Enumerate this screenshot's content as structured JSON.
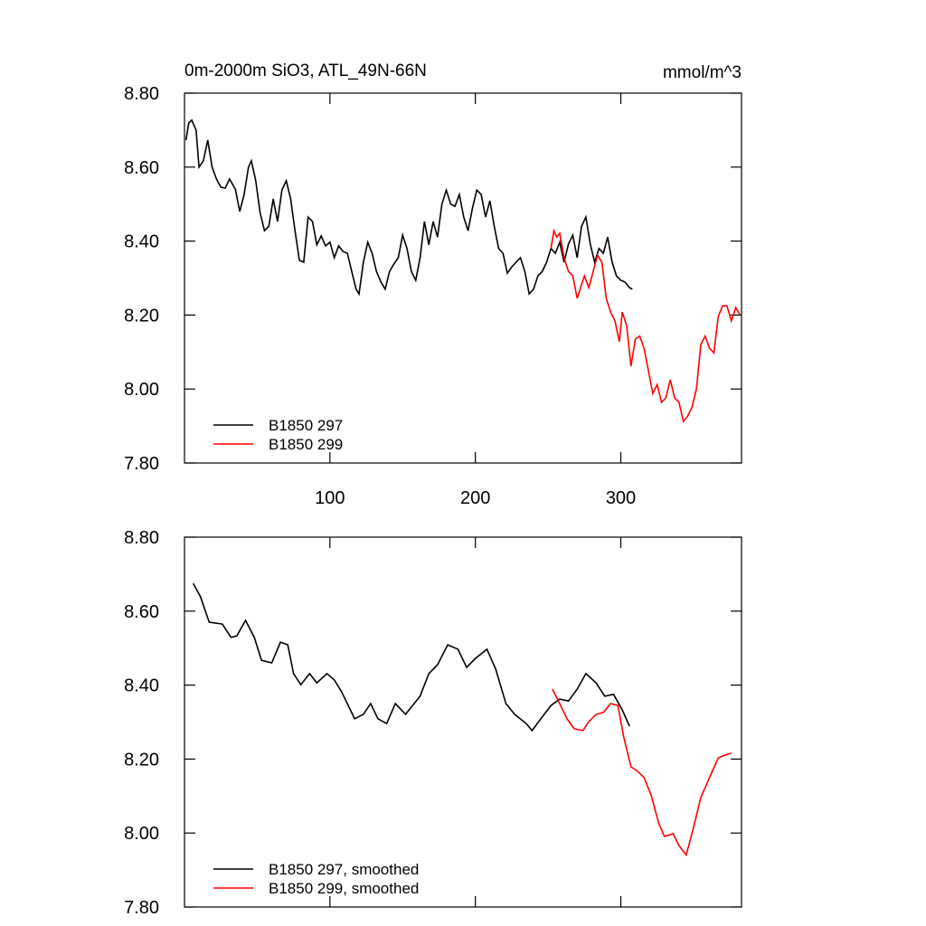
{
  "chart_data": [
    {
      "type": "line",
      "title": "0m-2000m SiO3, ATL_49N-66N",
      "units": "mmol/m^3",
      "xlim": [
        0,
        383
      ],
      "xticks": [
        100,
        200,
        300
      ],
      "xtick_labels": true,
      "ylim": [
        7.8,
        8.8
      ],
      "yticks": [
        {
          "value": 7.8,
          "label": "7.80"
        },
        {
          "value": 8.0,
          "label": "8.00"
        },
        {
          "value": 8.2,
          "label": "8.20"
        },
        {
          "value": 8.4,
          "label": "8.40"
        },
        {
          "value": 8.6,
          "label": "8.60"
        },
        {
          "value": 8.8,
          "label": "8.80"
        }
      ],
      "legend": "lower left",
      "series": [
        {
          "name": "B1850 297",
          "color": "#000000",
          "x": [
            1,
            3,
            5,
            8,
            10,
            13,
            16,
            19,
            22,
            25,
            28,
            31,
            35,
            38,
            41,
            44,
            46,
            49,
            52,
            55,
            58,
            61,
            64,
            67,
            70,
            73,
            76,
            79,
            82,
            85,
            88,
            91,
            94,
            97,
            100,
            103,
            106,
            109,
            112,
            115,
            118,
            120,
            123,
            126,
            129,
            132,
            135,
            138,
            141,
            144,
            147,
            150,
            153,
            156,
            159,
            162,
            165,
            168,
            171,
            174,
            177,
            180,
            183,
            186,
            189,
            192,
            195,
            198,
            201,
            204,
            207,
            210,
            213,
            216,
            219,
            222,
            225,
            228,
            231,
            234,
            237,
            240,
            243,
            246,
            249,
            252,
            255,
            258,
            261,
            264,
            267,
            270,
            273,
            276,
            279,
            282,
            285,
            288,
            291,
            294,
            297,
            300,
            303,
            306,
            308
          ],
          "values": [
            8.673,
            8.72,
            8.727,
            8.7,
            8.6,
            8.617,
            8.673,
            8.6,
            8.568,
            8.546,
            8.543,
            8.568,
            8.54,
            8.48,
            8.526,
            8.6,
            8.617,
            8.563,
            8.477,
            8.428,
            8.44,
            8.514,
            8.453,
            8.538,
            8.563,
            8.514,
            8.428,
            8.348,
            8.343,
            8.465,
            8.453,
            8.39,
            8.414,
            8.387,
            8.397,
            8.355,
            8.387,
            8.372,
            8.367,
            8.318,
            8.27,
            8.257,
            8.343,
            8.397,
            8.367,
            8.318,
            8.29,
            8.27,
            8.318,
            8.338,
            8.355,
            8.416,
            8.38,
            8.318,
            8.294,
            8.355,
            8.453,
            8.39,
            8.453,
            8.411,
            8.5,
            8.538,
            8.5,
            8.494,
            8.526,
            8.465,
            8.428,
            8.489,
            8.538,
            8.526,
            8.465,
            8.509,
            8.44,
            8.38,
            8.367,
            8.313,
            8.33,
            8.343,
            8.355,
            8.318,
            8.257,
            8.27,
            8.306,
            8.318,
            8.343,
            8.38,
            8.367,
            8.397,
            8.343,
            8.392,
            8.416,
            8.355,
            8.44,
            8.465,
            8.392,
            8.343,
            8.38,
            8.367,
            8.411,
            8.343,
            8.306,
            8.294,
            8.289,
            8.274,
            8.27
          ]
        },
        {
          "name": "B1850 299",
          "color": "#ff0000",
          "x": [
            252,
            254,
            256,
            258,
            261,
            264,
            267,
            270,
            273,
            275,
            278,
            281,
            284,
            287,
            290,
            293,
            296,
            299,
            301,
            304,
            307,
            310,
            313,
            316,
            319,
            322,
            325,
            328,
            331,
            334,
            337,
            340,
            343,
            346,
            349,
            352,
            355,
            358,
            361,
            364,
            367,
            370,
            373,
            376,
            379,
            382
          ],
          "values": [
            8.38,
            8.428,
            8.411,
            8.421,
            8.355,
            8.318,
            8.306,
            8.245,
            8.282,
            8.306,
            8.274,
            8.318,
            8.362,
            8.343,
            8.245,
            8.208,
            8.184,
            8.128,
            8.208,
            8.172,
            8.062,
            8.135,
            8.143,
            8.11,
            8.049,
            7.988,
            8.012,
            7.964,
            7.976,
            8.025,
            7.976,
            7.964,
            7.912,
            7.927,
            7.951,
            8.0,
            8.12,
            8.143,
            8.11,
            8.098,
            8.196,
            8.225,
            8.225,
            8.184,
            8.22,
            8.2
          ]
        }
      ]
    },
    {
      "type": "line",
      "xlim": [
        0,
        383
      ],
      "xticks": [
        100,
        200,
        300
      ],
      "xtick_labels": false,
      "ylim": [
        7.8,
        8.8
      ],
      "yticks": [
        {
          "value": 7.8,
          "label": "7.80"
        },
        {
          "value": 8.0,
          "label": "8.00"
        },
        {
          "value": 8.2,
          "label": "8.20"
        },
        {
          "value": 8.4,
          "label": "8.40"
        },
        {
          "value": 8.6,
          "label": "8.60"
        },
        {
          "value": 8.8,
          "label": "8.80"
        }
      ],
      "legend": "lower left",
      "series": [
        {
          "name": "B1850 297, smoothed",
          "color": "#000000",
          "x": [
            6,
            11,
            17,
            26,
            32,
            36,
            42,
            48,
            53,
            60,
            66,
            71,
            75,
            80,
            86,
            91,
            98,
            103,
            108,
            117,
            123,
            128,
            133,
            139,
            145,
            152,
            162,
            168,
            174,
            181,
            188,
            194,
            200,
            208,
            214,
            221,
            227,
            235,
            239,
            245,
            252,
            258,
            264,
            270,
            276,
            283,
            289,
            295,
            301,
            306
          ],
          "values": [
            8.675,
            8.639,
            8.57,
            8.565,
            8.529,
            8.533,
            8.575,
            8.529,
            8.467,
            8.46,
            8.516,
            8.509,
            8.431,
            8.401,
            8.431,
            8.406,
            8.431,
            8.414,
            8.382,
            8.309,
            8.321,
            8.35,
            8.309,
            8.296,
            8.35,
            8.321,
            8.37,
            8.431,
            8.455,
            8.509,
            8.497,
            8.448,
            8.472,
            8.497,
            8.443,
            8.35,
            8.321,
            8.296,
            8.277,
            8.309,
            8.345,
            8.362,
            8.357,
            8.389,
            8.431,
            8.406,
            8.37,
            8.375,
            8.333,
            8.289
          ]
        },
        {
          "name": "B1850 299, smoothed",
          "color": "#ff0000",
          "x": [
            253,
            258,
            263,
            268,
            274,
            278,
            283,
            288,
            293,
            298,
            302,
            307,
            311,
            316,
            321,
            326,
            330,
            336,
            340,
            345,
            350,
            355,
            361,
            367,
            372,
            376
          ],
          "values": [
            8.389,
            8.35,
            8.309,
            8.282,
            8.277,
            8.301,
            8.321,
            8.326,
            8.35,
            8.345,
            8.26,
            8.179,
            8.169,
            8.15,
            8.101,
            8.027,
            7.991,
            7.998,
            7.966,
            7.941,
            8.015,
            8.096,
            8.15,
            8.203,
            8.211,
            8.216
          ]
        }
      ]
    }
  ]
}
